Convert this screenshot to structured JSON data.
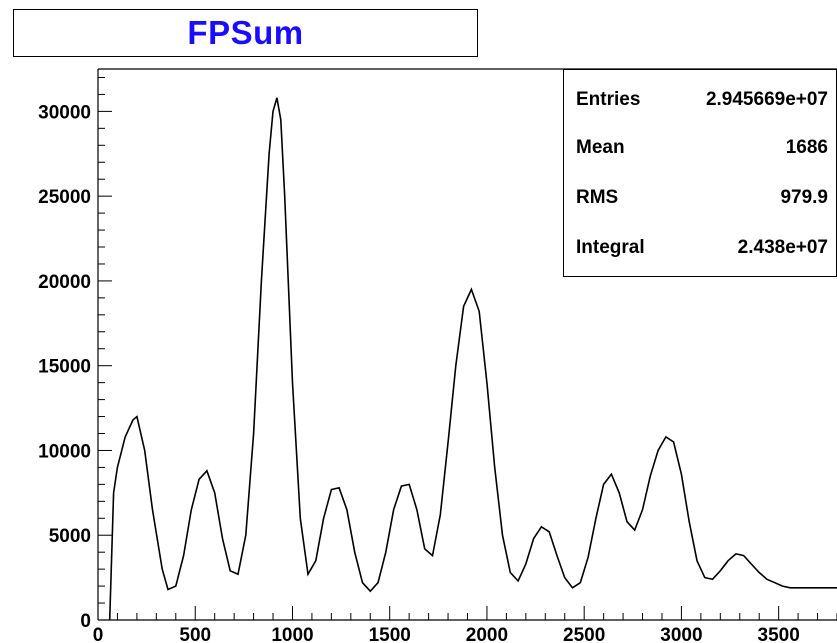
{
  "title": "FPSum",
  "stats": [
    {
      "label": "Entries",
      "value": "2.945669e+07"
    },
    {
      "label": "Mean",
      "value": "1686"
    },
    {
      "label": "RMS",
      "value": "979.9"
    },
    {
      "label": "Integral",
      "value": "2.438e+07"
    }
  ],
  "chart_data": {
    "type": "line",
    "title": "FPSum",
    "xlabel": "",
    "ylabel": "",
    "xlim": [
      0,
      3800
    ],
    "ylim": [
      0,
      32500
    ],
    "x_ticks": [
      0,
      500,
      1000,
      1500,
      2000,
      2500,
      3000,
      3500
    ],
    "x_tick_labels": [
      "0",
      "500",
      "1000",
      "1500",
      "2000",
      "2500",
      "3000",
      "3500"
    ],
    "y_ticks": [
      0,
      5000,
      10000,
      15000,
      20000,
      25000,
      30000
    ],
    "y_tick_labels": [
      "0",
      "5000",
      "10000",
      "15000",
      "20000",
      "25000",
      "30000"
    ],
    "series": [
      {
        "x": [
          60,
          80,
          100,
          140,
          180,
          200,
          240,
          280,
          330,
          360,
          400,
          440,
          480,
          520,
          560,
          600,
          640,
          680,
          720,
          760,
          800,
          840,
          880,
          900,
          920,
          940,
          960,
          1000,
          1040,
          1080,
          1120,
          1160,
          1200,
          1240,
          1280,
          1320,
          1360,
          1400,
          1440,
          1480,
          1520,
          1560,
          1600,
          1640,
          1680,
          1720,
          1760,
          1800,
          1840,
          1880,
          1920,
          1960,
          2000,
          2040,
          2080,
          2120,
          2160,
          2200,
          2240,
          2280,
          2320,
          2360,
          2400,
          2440,
          2480,
          2520,
          2560,
          2600,
          2640,
          2680,
          2720,
          2760,
          2800,
          2840,
          2880,
          2920,
          2960,
          3000,
          3040,
          3080,
          3120,
          3160,
          3200,
          3240,
          3280,
          3320,
          3360,
          3400,
          3440,
          3480,
          3520,
          3560,
          3600,
          3640,
          3680,
          3720,
          3760,
          3800
        ],
        "y": [
          0,
          7500,
          9000,
          10800,
          11800,
          12000,
          10000,
          6500,
          3000,
          1800,
          2000,
          3800,
          6500,
          8300,
          8800,
          7500,
          4800,
          2900,
          2700,
          5000,
          11000,
          20000,
          27500,
          30000,
          30800,
          29500,
          25000,
          14000,
          6000,
          2700,
          3500,
          6000,
          7700,
          7800,
          6500,
          4000,
          2200,
          1700,
          2200,
          4000,
          6500,
          7900,
          8000,
          6500,
          4200,
          3800,
          6200,
          10500,
          15000,
          18500,
          19500,
          18200,
          14000,
          9000,
          5000,
          2800,
          2300,
          3300,
          4800,
          5500,
          5200,
          3800,
          2500,
          1900,
          2200,
          3700,
          6000,
          8000,
          8600,
          7500,
          5800,
          5300,
          6500,
          8500,
          10000,
          10800,
          10500,
          8600,
          5800,
          3500,
          2500,
          2400,
          2900,
          3500,
          3900,
          3800,
          3300,
          2800,
          2400,
          2200,
          2000,
          1900,
          1900,
          1900,
          1900,
          1900,
          1900,
          1900
        ]
      }
    ],
    "grid": false,
    "line_color": "#000000"
  }
}
